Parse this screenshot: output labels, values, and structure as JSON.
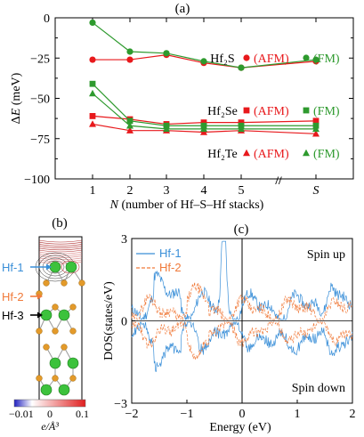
{
  "panels": {
    "a": "(a)",
    "b": "(b)",
    "c": "(c)"
  },
  "colors": {
    "afm": "#e8191c",
    "fm": "#2e9a2e",
    "hf1": "#3a8fd8",
    "hf2": "#f07a3a",
    "ref_line": "#4444cc",
    "atom_hf": "#3cc23c",
    "atom_s": "#e39a2a"
  },
  "chart_data": [
    {
      "type": "line",
      "title": "(a)",
      "xlabel": "N (number of Hf–S–Hf stacks)",
      "ylabel": "ΔE (meV)",
      "xticks": [
        "1",
        "2",
        "3",
        "4",
        "5",
        "S"
      ],
      "x_break_label": "//",
      "ylim": [
        -100,
        0
      ],
      "yticks": [
        -100,
        -75,
        -50,
        -25,
        0
      ],
      "reference_line": 0,
      "series": [
        {
          "name": "Hf2S (AFM)",
          "compound": "Hf₂S",
          "magnetic": "(AFM)",
          "marker": "circle",
          "color_key": "afm",
          "values": [
            -26,
            -26,
            -23,
            -28,
            -31,
            -27
          ]
        },
        {
          "name": "Hf2S (FM)",
          "compound": "Hf₂S",
          "magnetic": "(FM)",
          "marker": "circle",
          "color_key": "fm",
          "values": [
            -3,
            -21,
            -22,
            -27,
            -31,
            -26
          ]
        },
        {
          "name": "Hf2Se (AFM)",
          "compound": "Hf₂Se",
          "magnetic": "(AFM)",
          "marker": "square",
          "color_key": "afm",
          "values": [
            -61,
            -63,
            -66,
            -65,
            -65,
            -64
          ]
        },
        {
          "name": "Hf2Se (FM)",
          "compound": "Hf₂Se",
          "magnetic": "(FM)",
          "marker": "square",
          "color_key": "fm",
          "values": [
            -41,
            -64,
            -67,
            -67,
            -67,
            -67
          ]
        },
        {
          "name": "Hf2Te (AFM)",
          "compound": "Hf₂Te",
          "magnetic": "(AFM)",
          "marker": "triangle",
          "color_key": "afm",
          "values": [
            -66,
            -70,
            -70,
            -71,
            -70,
            -72
          ]
        },
        {
          "name": "Hf2Te (FM)",
          "compound": "Hf₂Te",
          "magnetic": "(FM)",
          "marker": "triangle",
          "color_key": "fm",
          "values": [
            -47,
            -67,
            -69,
            -69,
            -69,
            -69
          ]
        }
      ],
      "legend_rows": [
        {
          "compound": "Hf₂S",
          "afm": "(AFM)",
          "fm": "(FM)"
        },
        {
          "compound": "Hf₂Se",
          "afm": "(AFM)",
          "fm": "(FM)"
        },
        {
          "compound": "Hf₂Te",
          "afm": "(AFM)",
          "fm": "(FM)"
        }
      ]
    },
    {
      "type": "heatmap",
      "title": "(b)",
      "atom_labels": [
        "Hf-1",
        "Hf-2",
        "Hf-3"
      ],
      "colorbar": {
        "min": "−0.01",
        "mid": "0",
        "max": "0.1",
        "unit": "e/Å³"
      }
    },
    {
      "type": "line",
      "title": "(c)",
      "xlabel": "Energy (eV)",
      "ylabel": "DOS(states/eV)",
      "xlim": [
        -2,
        2
      ],
      "ylim": [
        -3,
        3
      ],
      "xticks": [
        -2,
        -1,
        0,
        1,
        2
      ],
      "yticks": [
        -3,
        0,
        3
      ],
      "annotations": [
        "Spin up",
        "Spin down"
      ],
      "series": [
        {
          "name": "Hf-1",
          "style": "solid",
          "color_key": "hf1"
        },
        {
          "name": "Hf-2",
          "style": "dashed",
          "color_key": "hf2"
        }
      ]
    }
  ]
}
